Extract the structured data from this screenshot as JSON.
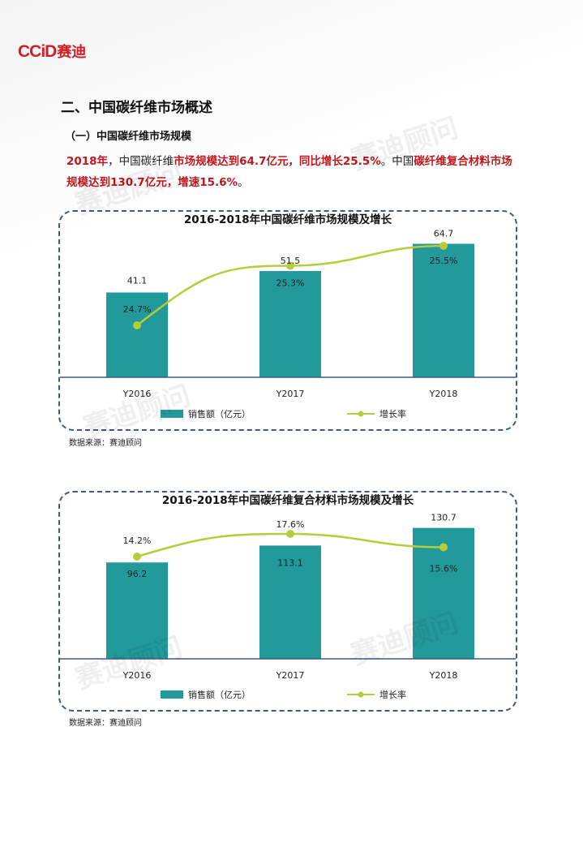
{
  "logo": {
    "text_en": "CCiD",
    "text_cn": "赛迪"
  },
  "section_title": "二、中国碳纤维市场概述",
  "subsection_title": "（一）中国碳纤维市场规模",
  "paragraph": {
    "p1": "2018年",
    "p2": "，中国碳纤维",
    "p3": "市场规模达到64.7亿元，同比增长25.5%",
    "p4": "。中国",
    "p5": "碳纤维复合材料市场规模达到130.7亿元，增速15.6%",
    "p6": "。"
  },
  "watermark": "赛迪顾问",
  "chart_data": [
    {
      "type": "bar",
      "title": "2016-2018年中国碳纤维市场规模及增长",
      "categories": [
        "Y2016",
        "Y2017",
        "Y2018"
      ],
      "series": [
        {
          "name": "销售额（亿元）",
          "type": "bar",
          "values": [
            41.1,
            51.5,
            64.7
          ]
        },
        {
          "name": "增长率",
          "type": "line",
          "values": [
            24.7,
            25.3,
            25.5
          ],
          "unit": "%"
        }
      ],
      "labels_bar": [
        "41.1",
        "51.5",
        "64.7"
      ],
      "labels_line": [
        "24.7%",
        "25.3%",
        "25.5%"
      ],
      "bar_ylim": [
        0,
        70
      ],
      "legend": "bottom",
      "source": "数据来源：赛迪顾问",
      "colors": {
        "bar": "#22999a",
        "line": "#b7cc3a",
        "axis": "#3d5a86"
      }
    },
    {
      "type": "bar",
      "title": "2016-2018年中国碳纤维复合材料市场规模及增长",
      "categories": [
        "Y2016",
        "Y2017",
        "Y2018"
      ],
      "series": [
        {
          "name": "销售额（亿元）",
          "type": "bar",
          "values": [
            96.2,
            113.1,
            130.7
          ]
        },
        {
          "name": "增长率",
          "type": "line",
          "values": [
            14.2,
            17.6,
            15.6
          ],
          "unit": "%"
        }
      ],
      "labels_bar": [
        "96.2",
        "113.1",
        "130.7"
      ],
      "labels_line": [
        "14.2%",
        "17.6%",
        "15.6%"
      ],
      "bar_ylim": [
        0,
        145
      ],
      "legend": "bottom",
      "source": "数据来源：赛迪顾问",
      "colors": {
        "bar": "#22999a",
        "line": "#b7cc3a",
        "axis": "#3d5a86"
      }
    }
  ]
}
